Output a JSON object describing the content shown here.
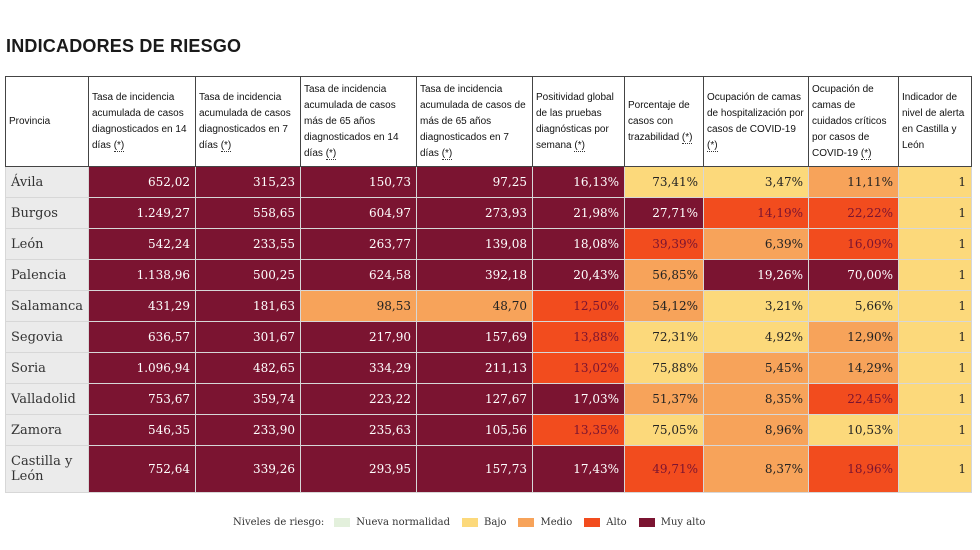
{
  "title": "INDICADORES DE RIESGO",
  "headers": [
    {
      "text": "Provincia",
      "link": ""
    },
    {
      "text": "Tasa de incidencia acumulada de casos diagnosticados en 14 días ",
      "link": "(*)"
    },
    {
      "text": "Tasa de incidencia acumulada de casos diagnosticados en 7 días ",
      "link": "(*)"
    },
    {
      "text": "Tasa de incidencia acumulada de casos más de 65 años diagnosticados en 14 días ",
      "link": "(*)"
    },
    {
      "text": "Tasa de incidencia acumulada de casos de más de 65 años diagnosticados en 7 días ",
      "link": "(*)"
    },
    {
      "text": "Positividad global de las pruebas diagnósticas por semana ",
      "link": "(*)"
    },
    {
      "text": "Porcentaje de casos con trazabilidad ",
      "link": "(*)"
    },
    {
      "text": "Ocupación de camas de hospitalización por casos de COVID-19 ",
      "link": "(*)"
    },
    {
      "text": "Ocupación de camas de cuidados críticos por casos de COVID-19 ",
      "link": "(*)"
    },
    {
      "text": "Indicador de nivel de alerta en Castilla y León",
      "link": ""
    }
  ],
  "rows": [
    {
      "provincia": "Ávila",
      "values": [
        "652,02",
        "315,23",
        "150,73",
        "97,25",
        "16,13%",
        "73,41%",
        "3,47%",
        "11,11%",
        "1"
      ],
      "levels": [
        "mal",
        "mal",
        "mal",
        "mal",
        "mal",
        "bajo",
        "bajo",
        "medio",
        "bajo"
      ]
    },
    {
      "provincia": "Burgos",
      "values": [
        "1.249,27",
        "558,65",
        "604,97",
        "273,93",
        "21,98%",
        "27,71%",
        "14,19%",
        "22,22%",
        "1"
      ],
      "levels": [
        "mal",
        "mal",
        "mal",
        "mal",
        "mal",
        "mal",
        "alto",
        "alto",
        "bajo"
      ]
    },
    {
      "provincia": "León",
      "values": [
        "542,24",
        "233,55",
        "263,77",
        "139,08",
        "18,08%",
        "39,39%",
        "6,39%",
        "16,09%",
        "1"
      ],
      "levels": [
        "mal",
        "mal",
        "mal",
        "mal",
        "mal",
        "alto",
        "medio",
        "alto",
        "bajo"
      ]
    },
    {
      "provincia": "Palencia",
      "values": [
        "1.138,96",
        "500,25",
        "624,58",
        "392,18",
        "20,43%",
        "56,85%",
        "19,26%",
        "70,00%",
        "1"
      ],
      "levels": [
        "mal",
        "mal",
        "mal",
        "mal",
        "mal",
        "medio",
        "mal",
        "mal",
        "bajo"
      ]
    },
    {
      "provincia": "Salamanca",
      "values": [
        "431,29",
        "181,63",
        "98,53",
        "48,70",
        "12,50%",
        "54,12%",
        "3,21%",
        "5,66%",
        "1"
      ],
      "levels": [
        "mal",
        "mal",
        "medio",
        "medio",
        "alto",
        "medio",
        "bajo",
        "bajo",
        "bajo"
      ]
    },
    {
      "provincia": "Segovia",
      "values": [
        "636,57",
        "301,67",
        "217,90",
        "157,69",
        "13,88%",
        "72,31%",
        "4,92%",
        "12,90%",
        "1"
      ],
      "levels": [
        "mal",
        "mal",
        "mal",
        "mal",
        "alto",
        "bajo",
        "bajo",
        "medio",
        "bajo"
      ]
    },
    {
      "provincia": "Soria",
      "values": [
        "1.096,94",
        "482,65",
        "334,29",
        "211,13",
        "13,02%",
        "75,88%",
        "5,45%",
        "14,29%",
        "1"
      ],
      "levels": [
        "mal",
        "mal",
        "mal",
        "mal",
        "alto",
        "bajo",
        "medio",
        "medio",
        "bajo"
      ]
    },
    {
      "provincia": "Valladolid",
      "values": [
        "753,67",
        "359,74",
        "223,22",
        "127,67",
        "17,03%",
        "51,37%",
        "8,35%",
        "22,45%",
        "1"
      ],
      "levels": [
        "mal",
        "mal",
        "mal",
        "mal",
        "mal",
        "medio",
        "medio",
        "alto",
        "bajo"
      ]
    },
    {
      "provincia": "Zamora",
      "values": [
        "546,35",
        "233,90",
        "235,63",
        "105,56",
        "13,35%",
        "75,05%",
        "8,96%",
        "10,53%",
        "1"
      ],
      "levels": [
        "mal",
        "mal",
        "mal",
        "mal",
        "alto",
        "bajo",
        "medio",
        "bajo",
        "bajo"
      ]
    },
    {
      "provincia": "Castilla y León",
      "values": [
        "752,64",
        "339,26",
        "293,95",
        "157,73",
        "17,43%",
        "49,71%",
        "8,37%",
        "18,96%",
        "1"
      ],
      "levels": [
        "mal",
        "mal",
        "mal",
        "mal",
        "mal",
        "alto",
        "medio",
        "alto",
        "bajo"
      ]
    }
  ],
  "legend": {
    "label": "Niveles de riesgo:",
    "items": [
      {
        "name": "Nueva normalidad",
        "color": "#e3f0dc"
      },
      {
        "name": "Bajo",
        "color": "#fcd97b"
      },
      {
        "name": "Medio",
        "color": "#f7a35a"
      },
      {
        "name": "Alto",
        "color": "#f24c1e"
      },
      {
        "name": "Muy alto",
        "color": "#7b1431"
      }
    ]
  }
}
